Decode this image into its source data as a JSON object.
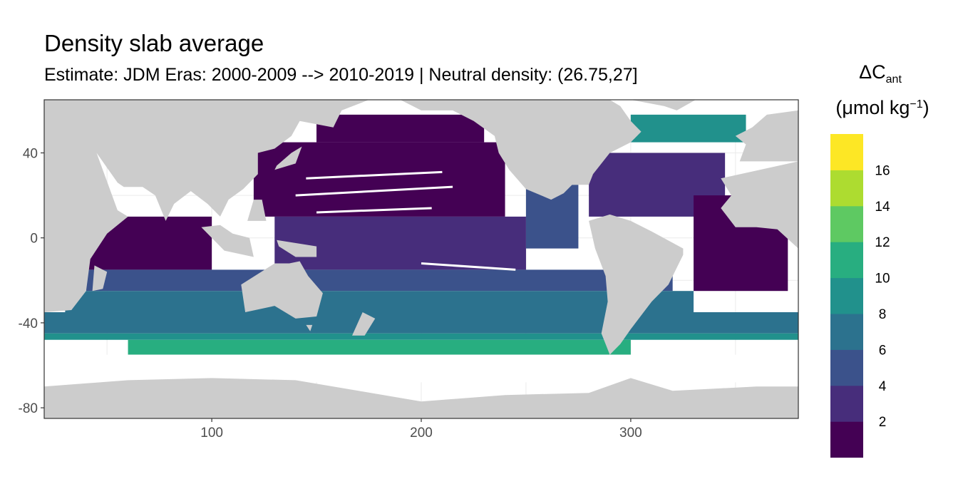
{
  "header": {
    "title": "Density slab average",
    "subtitle": "Estimate: JDM Eras: 2000-2009 --> 2010-2019 | Neutral density: (26.75,27]"
  },
  "legend": {
    "title_symbol": "ΔC",
    "title_subscript": "ant",
    "unit_open": "(μmol kg",
    "unit_superscript": "−1",
    "unit_close": ")",
    "levels": [
      {
        "label": "",
        "color": "#440154"
      },
      {
        "label": "2",
        "color": "#472d7b"
      },
      {
        "label": "4",
        "color": "#3b528b"
      },
      {
        "label": "6",
        "color": "#2c728e"
      },
      {
        "label": "8",
        "color": "#21918c"
      },
      {
        "label": "10",
        "color": "#28ae80"
      },
      {
        "label": "12",
        "color": "#5ec962"
      },
      {
        "label": "14",
        "color": "#addc30"
      },
      {
        "label": "16",
        "color": "#fde725"
      }
    ]
  },
  "chart_data": {
    "type": "heatmap",
    "title": "Density slab average",
    "subtitle": "Estimate: JDM Eras: 2000-2009 --> 2010-2019 | Neutral density: (26.75,27]",
    "xlabel": "",
    "ylabel": "",
    "xlim": [
      20,
      380
    ],
    "ylim": [
      -85,
      65
    ],
    "x_ticks": [
      100,
      200,
      300
    ],
    "y_ticks": [
      40,
      0,
      -40,
      -80
    ],
    "grid": true,
    "legend_placement": "right",
    "colorscale_breaks": [
      2,
      4,
      6,
      8,
      10,
      12,
      14,
      16
    ],
    "colors": {
      "land": "#cccccc",
      "missing": "#ffffff",
      "panel_border": "#333333"
    },
    "bands": [
      {
        "lat": [
          45,
          60
        ],
        "lon": [
          150,
          230
        ],
        "value": 1
      },
      {
        "lat": [
          10,
          45
        ],
        "lon": [
          120,
          240
        ],
        "value": 1
      },
      {
        "lat": [
          -15,
          10
        ],
        "lon": [
          40,
          100
        ],
        "value": 1
      },
      {
        "lat": [
          -15,
          10
        ],
        "lon": [
          130,
          250
        ],
        "value": 2
      },
      {
        "lat": [
          -5,
          25
        ],
        "lon": [
          250,
          275
        ],
        "value": 4
      },
      {
        "lat": [
          10,
          40
        ],
        "lon": [
          280,
          345
        ],
        "value": 3
      },
      {
        "lat": [
          45,
          65
        ],
        "lon": [
          300,
          355
        ],
        "value": 9
      },
      {
        "lat": [
          -25,
          20
        ],
        "lon": [
          330,
          375
        ],
        "value": 1
      },
      {
        "lat": [
          -25,
          -15
        ],
        "lon": [
          40,
          320
        ],
        "value": 4
      },
      {
        "lat": [
          -35,
          -25
        ],
        "lon": [
          30,
          330
        ],
        "value": 6
      },
      {
        "lat": [
          -45,
          -35
        ],
        "lon": [
          20,
          380
        ],
        "value": 7
      },
      {
        "lat": [
          -48,
          -45
        ],
        "lon": [
          20,
          380
        ],
        "value": 9
      },
      {
        "lat": [
          -55,
          -48
        ],
        "lon": [
          60,
          300
        ],
        "value": 11
      }
    ]
  }
}
